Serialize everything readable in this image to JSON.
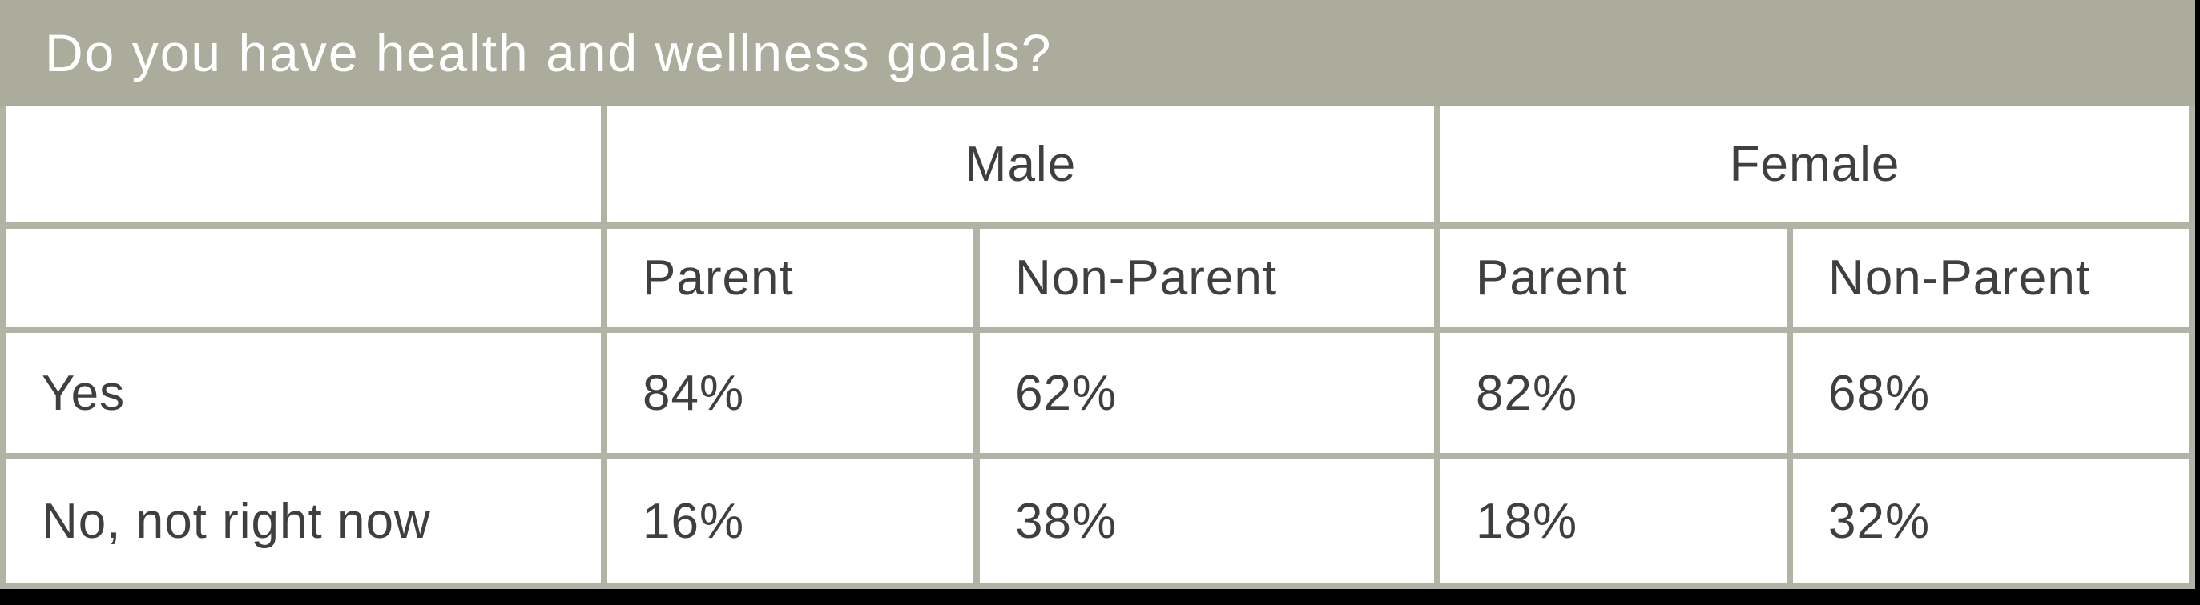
{
  "title": "Do you have health and wellness goals?",
  "colors": {
    "title_bar_bg": "#abac9b",
    "grid_border": "#b2b3a4",
    "title_text": "#ffffff",
    "cell_text": "#3f3f3f",
    "cell_bg": "#ffffff",
    "frame": "#000000"
  },
  "table": {
    "group_headers": [
      {
        "label": "Male"
      },
      {
        "label": "Female"
      }
    ],
    "sub_headers": [
      "Parent",
      "Non-Parent",
      "Parent",
      "Non-Parent"
    ],
    "rows": [
      {
        "label": "Yes",
        "values": [
          "84%",
          "62%",
          "82%",
          "68%"
        ]
      },
      {
        "label": "No, not right now",
        "values": [
          "16%",
          "38%",
          "18%",
          "32%"
        ]
      }
    ]
  },
  "chart_data": {
    "type": "table",
    "title": "Do you have health and wellness goals?",
    "column_groups": [
      "Male",
      "Female"
    ],
    "columns": [
      "Male Parent",
      "Male Non-Parent",
      "Female Parent",
      "Female Non-Parent"
    ],
    "row_labels": [
      "Yes",
      "No, not right now"
    ],
    "values_percent": [
      [
        84,
        62,
        82,
        68
      ],
      [
        16,
        38,
        18,
        32
      ]
    ]
  }
}
